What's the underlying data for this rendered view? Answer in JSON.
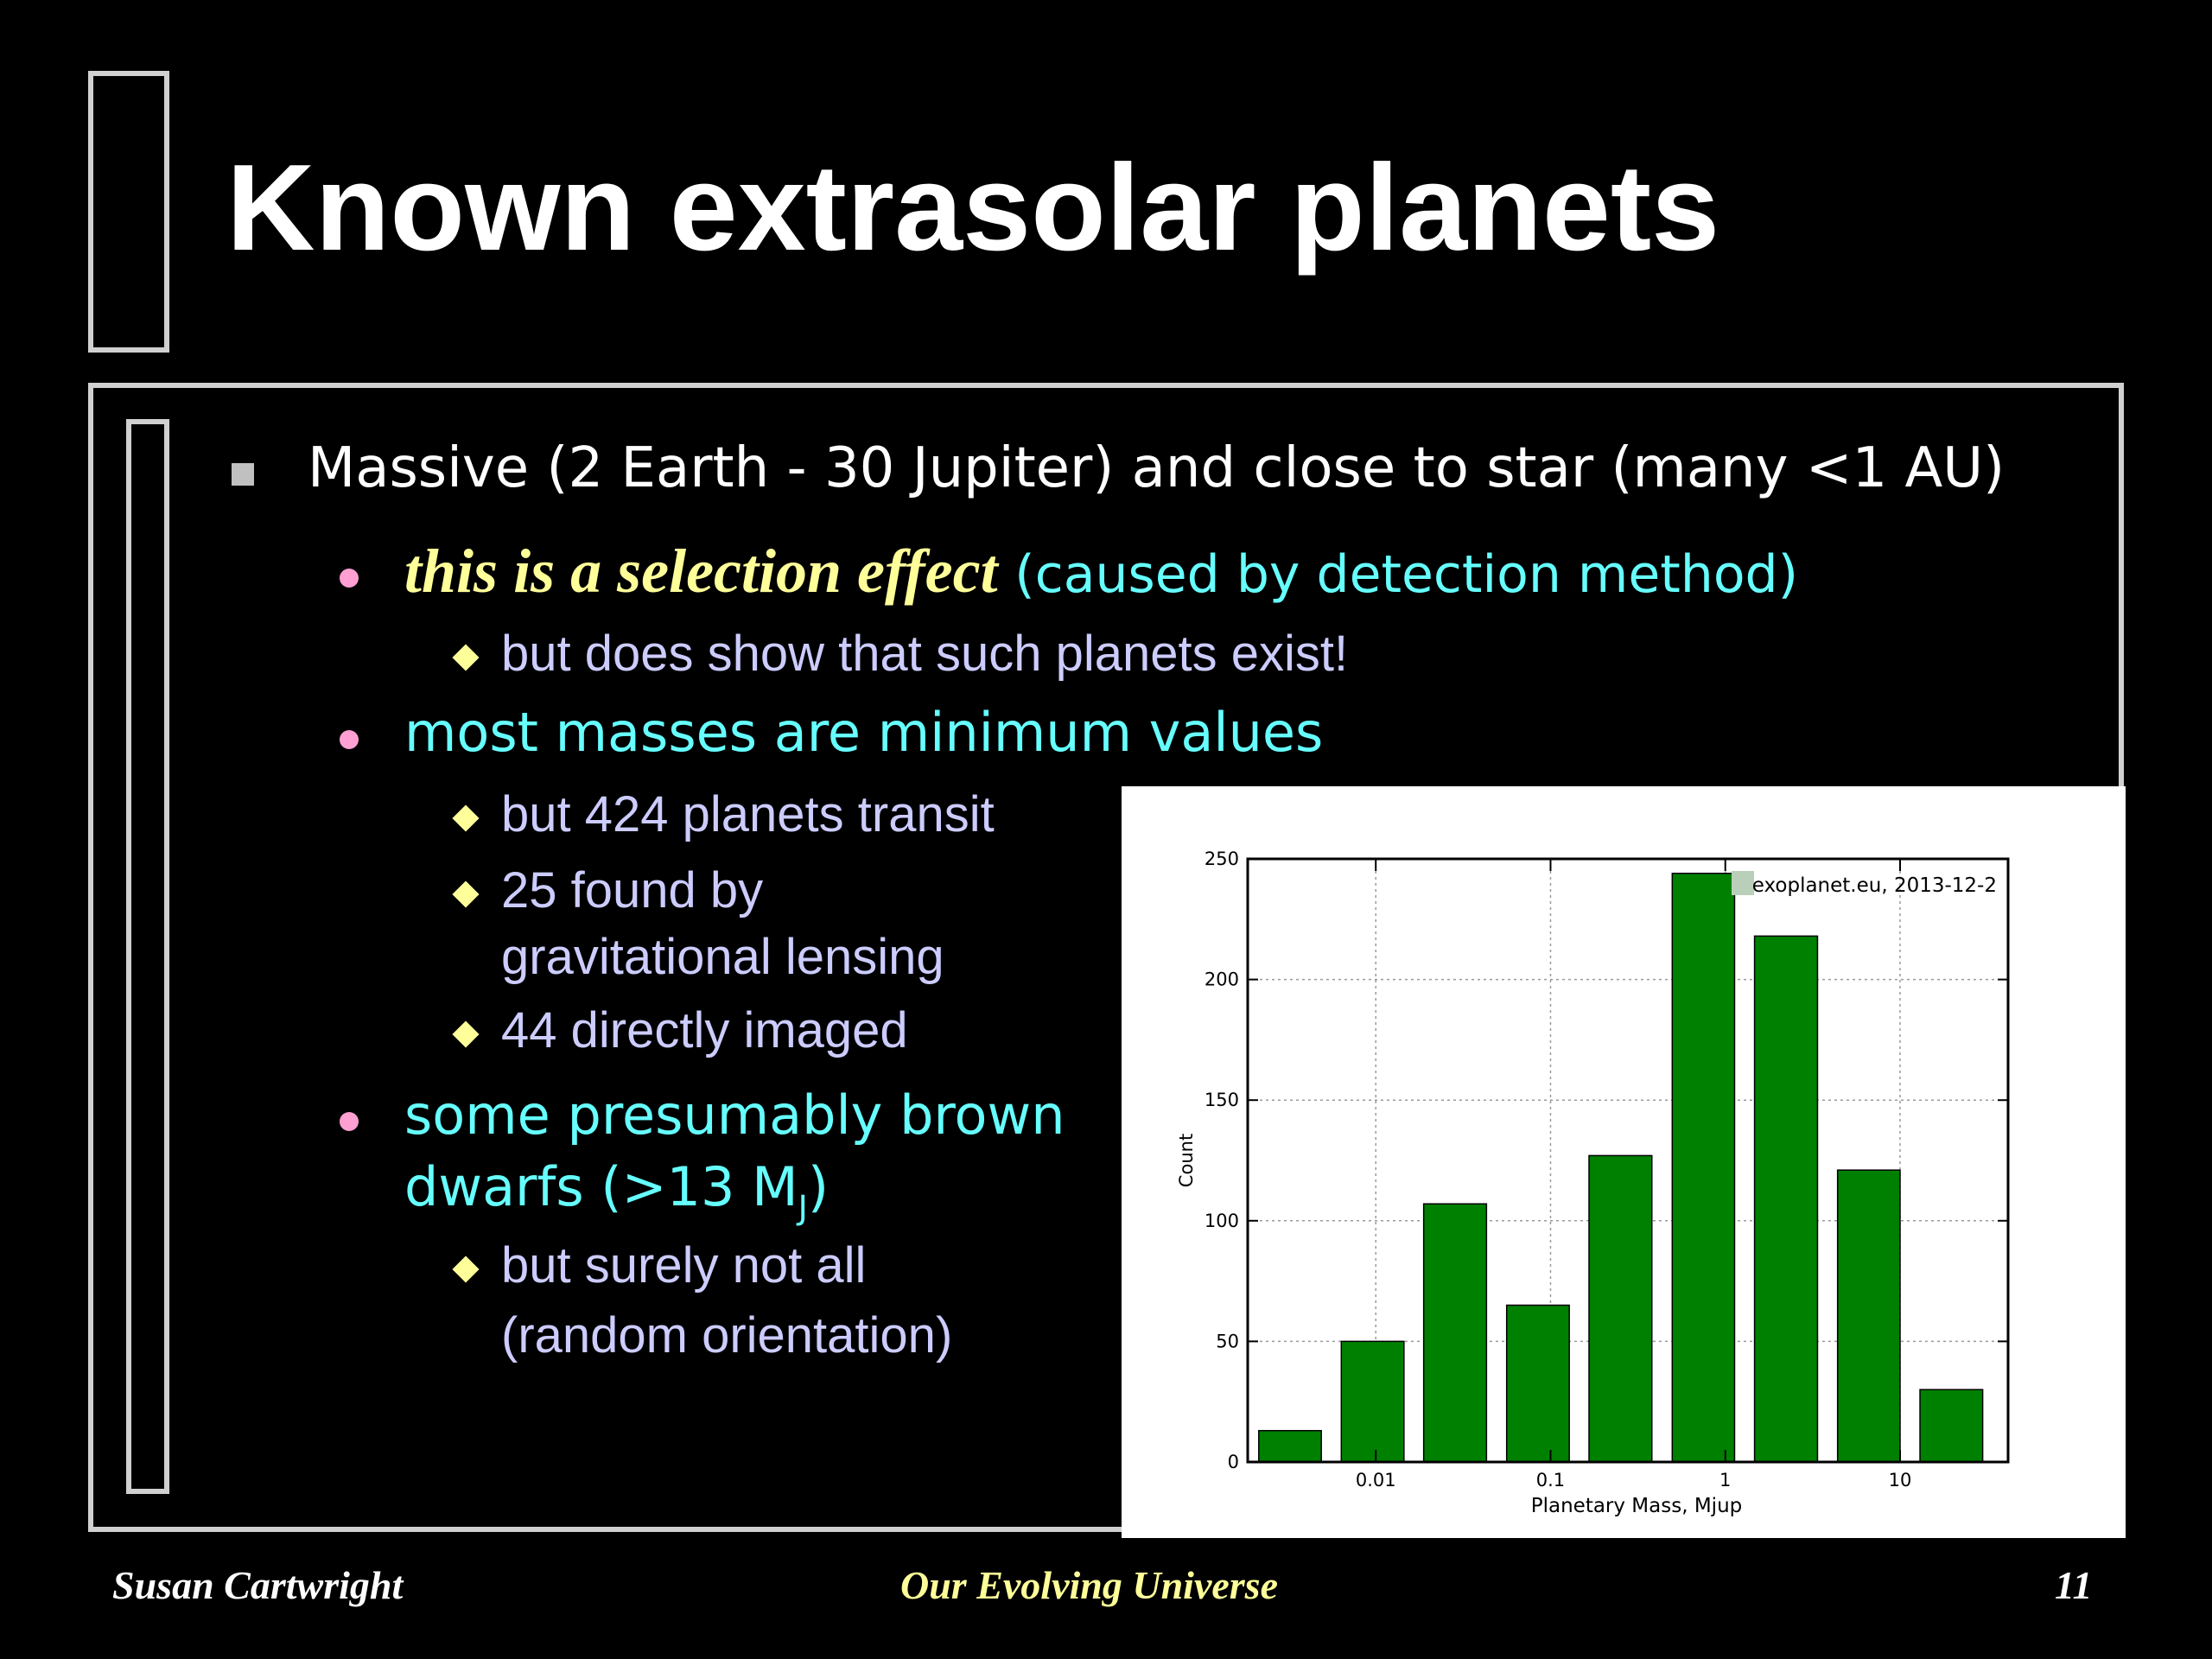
{
  "slide": {
    "title": "Known extrasolar planets",
    "bullets": {
      "b1": "Massive (2 Earth - 30 Jupiter) and close to star (many <1 AU)",
      "b1_1_em": "this is a selection effect",
      "b1_1_rest": "(caused by detection method)",
      "b1_1_1": "but does show that such planets exist!",
      "b1_2": "most masses are minimum values",
      "b1_2_1": "but 424 planets transit",
      "b1_2_2a": "25 found by",
      "b1_2_2b": "gravitational lensing",
      "b1_2_3": "44 directly imaged",
      "b1_3a": "some presumably brown",
      "b1_3b": "dwarfs  (>13 M",
      "b1_3b_sub": "J",
      "b1_3b_end": ")",
      "b1_3_1a": "but surely not all",
      "b1_3_1b": "(random orientation)"
    },
    "footer": {
      "author": "Susan Cartwright",
      "course": "Our Evolving Universe",
      "page": "11"
    },
    "colors": {
      "background": "#000000",
      "title": "#ffffff",
      "level2": "#66ffff",
      "level3": "#ccccff",
      "highlight": "#ffff99",
      "bar": "#008000"
    }
  },
  "chart_data": {
    "type": "bar",
    "annotation": "exoplanet.eu, 2013-12-2",
    "xlabel": "Planetary Mass, Mjup",
    "ylabel": "Count",
    "x_scale": "log",
    "x_ticks": [
      0.01,
      0.1,
      1,
      10
    ],
    "x_tick_labels": [
      "0.01",
      "0.1",
      "1",
      "10"
    ],
    "x_range": [
      0.00185,
      41.5
    ],
    "ylim": [
      0,
      250
    ],
    "y_ticks": [
      0,
      50,
      100,
      150,
      200,
      250
    ],
    "bins": [
      {
        "lo": 0.00214,
        "hi": 0.00488,
        "value": 13
      },
      {
        "lo": 0.00635,
        "hi": 0.0145,
        "value": 50
      },
      {
        "lo": 0.0188,
        "hi": 0.043,
        "value": 107
      },
      {
        "lo": 0.0561,
        "hi": 0.128,
        "value": 65
      },
      {
        "lo": 0.166,
        "hi": 0.38,
        "value": 127
      },
      {
        "lo": 0.497,
        "hi": 1.13,
        "value": 244
      },
      {
        "lo": 1.47,
        "hi": 3.37,
        "value": 218
      },
      {
        "lo": 4.39,
        "hi": 10.0,
        "value": 121
      },
      {
        "lo": 13.0,
        "hi": 29.7,
        "value": 30
      }
    ],
    "grid": true
  }
}
